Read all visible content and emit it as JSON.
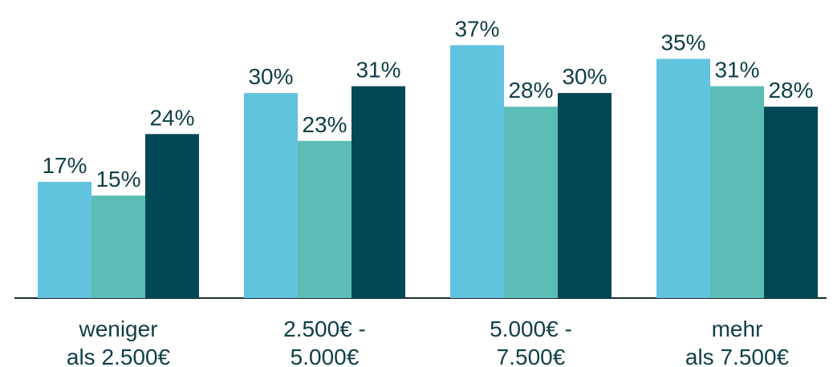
{
  "chart_data": {
    "type": "bar",
    "categories": [
      [
        "weniger",
        "als 2.500€"
      ],
      [
        "2.500€ -",
        "5.000€"
      ],
      [
        "5.000€ -",
        "7.500€"
      ],
      [
        "mehr",
        "als 7.500€"
      ]
    ],
    "series": [
      {
        "color": "#62c3de",
        "values": [
          17,
          30,
          37,
          35
        ],
        "value_labels": [
          "17%",
          "30%",
          "37%",
          "35%"
        ]
      },
      {
        "color": "#5bbdb6",
        "values": [
          15,
          23,
          28,
          31
        ],
        "value_labels": [
          "15%",
          "23%",
          "28%",
          "31%"
        ]
      },
      {
        "color": "#004856",
        "values": [
          24,
          31,
          30,
          28
        ],
        "value_labels": [
          "24%",
          "31%",
          "30%",
          "28%"
        ]
      }
    ]
  }
}
